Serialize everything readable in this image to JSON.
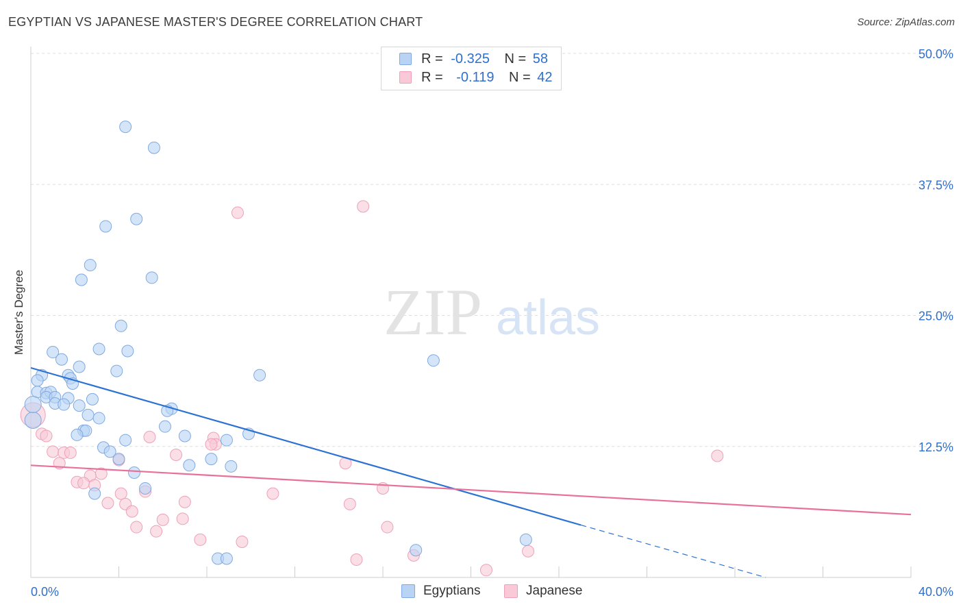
{
  "header": {
    "title": "EGYPTIAN VS JAPANESE MASTER'S DEGREE CORRELATION CHART",
    "source": "Source: ZipAtlas.com"
  },
  "legend_top": {
    "rows": [
      {
        "r_label": "R =",
        "r_value": "-0.325",
        "n_label": "N =",
        "n_value": "58"
      },
      {
        "r_label": "R =",
        "r_value": "-0.119",
        "n_label": "N =",
        "n_value": "42"
      }
    ]
  },
  "legend_bottom": {
    "items": [
      "Egyptians",
      "Japanese"
    ]
  },
  "watermark": {
    "zip": "ZIP",
    "atlas": "atlas"
  },
  "colors": {
    "blue_fill": "#b9d3f5",
    "blue_stroke": "#7fa9e0",
    "blue_line": "#2b72d4",
    "pink_fill": "#f9c9d7",
    "pink_stroke": "#eea0b8",
    "pink_line": "#e8709a",
    "grid": "#dddddd",
    "tick_label": "#2f6fce"
  },
  "chart_data": {
    "type": "scatter",
    "title": "EGYPTIAN VS JAPANESE MASTER'S DEGREE CORRELATION CHART",
    "xlabel": "",
    "ylabel": "Master's Degree",
    "xlim": [
      0,
      40
    ],
    "ylim": [
      0,
      50
    ],
    "x_tick_labels": [
      "0.0%",
      "40.0%"
    ],
    "y_ticks": [
      12.5,
      25.0,
      37.5,
      50.0
    ],
    "y_tick_labels": [
      "12.5%",
      "25.0%",
      "37.5%",
      "50.0%"
    ],
    "grid": true,
    "series": [
      {
        "name": "Egyptians",
        "R": -0.325,
        "N": 58,
        "trend": {
          "x": [
            0,
            25
          ],
          "y": [
            20.0,
            5.0
          ],
          "dashed_to": [
            33.4,
            0
          ]
        },
        "points": [
          [
            4.3,
            43.0
          ],
          [
            5.6,
            41.0
          ],
          [
            3.4,
            33.5
          ],
          [
            4.8,
            34.2
          ],
          [
            2.7,
            29.8
          ],
          [
            2.3,
            28.4
          ],
          [
            5.5,
            28.6
          ],
          [
            4.1,
            24.0
          ],
          [
            3.1,
            21.8
          ],
          [
            4.4,
            21.6
          ],
          [
            1.0,
            21.5
          ],
          [
            1.4,
            20.8
          ],
          [
            2.2,
            20.1
          ],
          [
            3.9,
            19.7
          ],
          [
            0.5,
            19.3
          ],
          [
            1.7,
            19.3
          ],
          [
            1.8,
            19.0
          ],
          [
            0.3,
            18.8
          ],
          [
            10.4,
            19.3
          ],
          [
            1.9,
            18.5
          ],
          [
            0.3,
            17.7
          ],
          [
            0.7,
            17.6
          ],
          [
            0.9,
            17.7
          ],
          [
            0.7,
            17.2
          ],
          [
            1.1,
            17.2
          ],
          [
            1.7,
            17.1
          ],
          [
            2.8,
            17.0
          ],
          [
            1.1,
            16.6
          ],
          [
            1.5,
            16.5
          ],
          [
            2.2,
            16.4
          ],
          [
            6.4,
            16.1
          ],
          [
            6.2,
            15.9
          ],
          [
            2.6,
            15.5
          ],
          [
            3.1,
            15.2
          ],
          [
            0.1,
            15.0
          ],
          [
            6.1,
            14.4
          ],
          [
            2.4,
            14.0
          ],
          [
            2.5,
            14.0
          ],
          [
            2.1,
            13.6
          ],
          [
            7.0,
            13.5
          ],
          [
            9.9,
            13.7
          ],
          [
            4.3,
            13.1
          ],
          [
            8.9,
            13.1
          ],
          [
            3.3,
            12.4
          ],
          [
            3.6,
            12.0
          ],
          [
            4.0,
            11.3
          ],
          [
            8.2,
            11.3
          ],
          [
            7.2,
            10.7
          ],
          [
            9.1,
            10.6
          ],
          [
            4.7,
            10.0
          ],
          [
            5.2,
            8.5
          ],
          [
            2.9,
            8.0
          ],
          [
            18.3,
            20.7
          ],
          [
            22.5,
            3.6
          ],
          [
            17.5,
            2.6
          ],
          [
            8.5,
            1.8
          ],
          [
            8.9,
            1.8
          ],
          [
            0.1,
            16.5
          ]
        ]
      },
      {
        "name": "Japanese",
        "R": -0.119,
        "N": 42,
        "trend": {
          "x": [
            0,
            40
          ],
          "y": [
            10.7,
            6.0
          ]
        },
        "points": [
          [
            9.4,
            34.8
          ],
          [
            15.1,
            35.4
          ],
          [
            0.1,
            15.5
          ],
          [
            0.5,
            13.7
          ],
          [
            0.7,
            13.5
          ],
          [
            5.4,
            13.4
          ],
          [
            8.3,
            13.3
          ],
          [
            8.4,
            12.7
          ],
          [
            8.2,
            12.7
          ],
          [
            1.0,
            12.0
          ],
          [
            1.5,
            11.9
          ],
          [
            1.8,
            11.9
          ],
          [
            6.6,
            11.7
          ],
          [
            4.0,
            11.2
          ],
          [
            1.3,
            10.9
          ],
          [
            14.3,
            10.9
          ],
          [
            31.2,
            11.6
          ],
          [
            3.2,
            9.9
          ],
          [
            2.7,
            9.7
          ],
          [
            2.1,
            9.1
          ],
          [
            2.4,
            9.0
          ],
          [
            2.9,
            8.8
          ],
          [
            5.2,
            8.2
          ],
          [
            4.1,
            8.0
          ],
          [
            11.0,
            8.0
          ],
          [
            16.0,
            8.5
          ],
          [
            3.5,
            7.1
          ],
          [
            4.3,
            7.0
          ],
          [
            7.0,
            7.2
          ],
          [
            14.5,
            7.0
          ],
          [
            4.6,
            6.3
          ],
          [
            6.0,
            5.5
          ],
          [
            6.9,
            5.6
          ],
          [
            4.8,
            4.8
          ],
          [
            16.2,
            4.8
          ],
          [
            5.7,
            4.4
          ],
          [
            7.7,
            3.6
          ],
          [
            9.6,
            3.4
          ],
          [
            22.6,
            2.5
          ],
          [
            14.8,
            1.7
          ],
          [
            17.4,
            2.1
          ],
          [
            20.7,
            0.7
          ]
        ]
      }
    ]
  }
}
